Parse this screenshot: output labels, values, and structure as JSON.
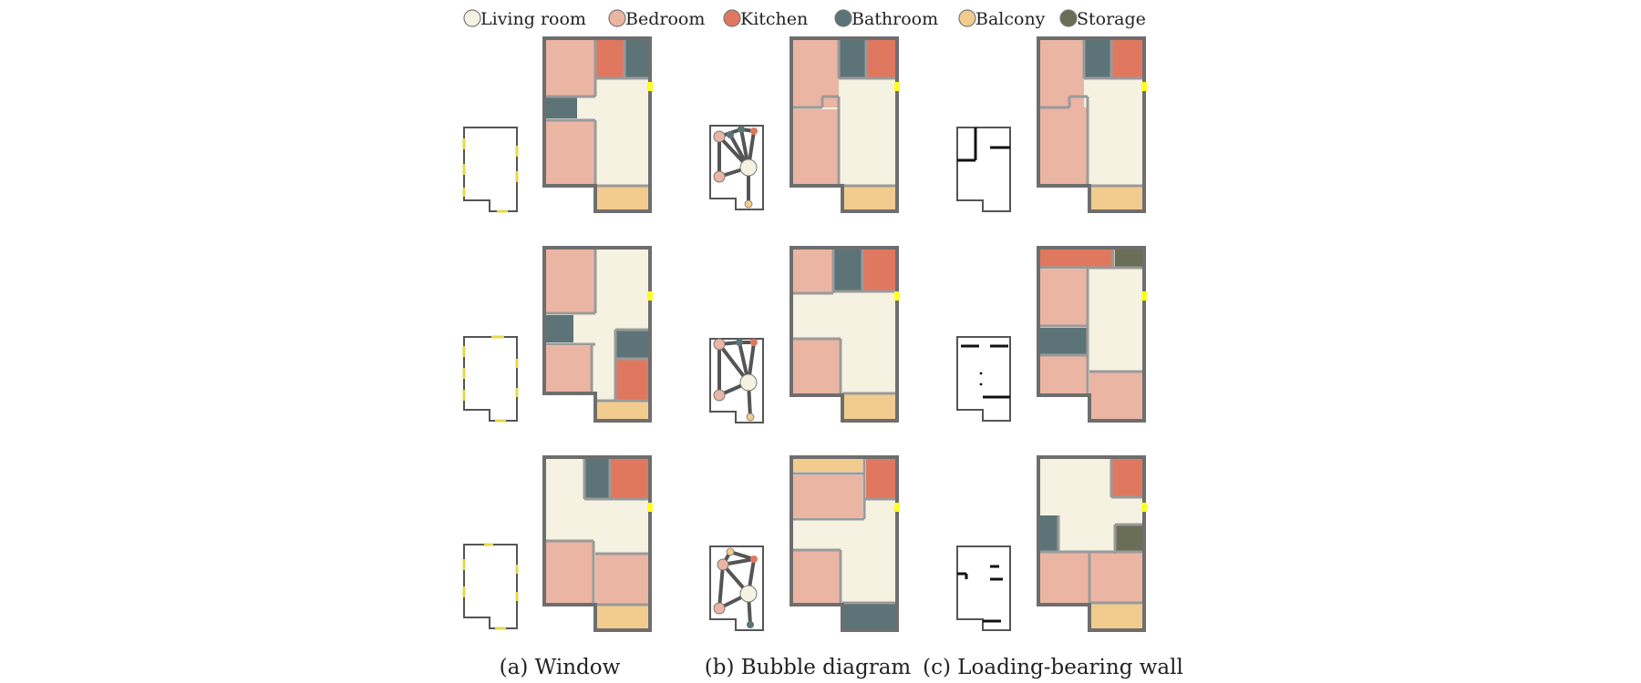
{
  "colors": {
    "living": "#f5f2e1",
    "bedroom": "#ebb5a4",
    "kitchen": "#e07860",
    "bathroom": "#5c7478",
    "balcony": "#f2cc8f",
    "storage": "#6b6e56",
    "wall": "#6e6e6e",
    "inner_wall": "#9a9a9a",
    "door": "#ffff22",
    "window": "#ffffff"
  },
  "legend": [
    {
      "label": "Living room",
      "color": "#f5f2e1"
    },
    {
      "label": "Bedroom",
      "color": "#ebb5a4"
    },
    {
      "label": "Kitchen",
      "color": "#e07860"
    },
    {
      "label": "Bathroom",
      "color": "#5c7478"
    },
    {
      "label": "Balcony",
      "color": "#f2cc8f"
    },
    {
      "label": "Storage",
      "color": "#6b6e56"
    }
  ],
  "captions": {
    "a": "(a) Window",
    "b": "(b) Bubble diagram",
    "c": "(c) Loading-bearing wall"
  }
}
